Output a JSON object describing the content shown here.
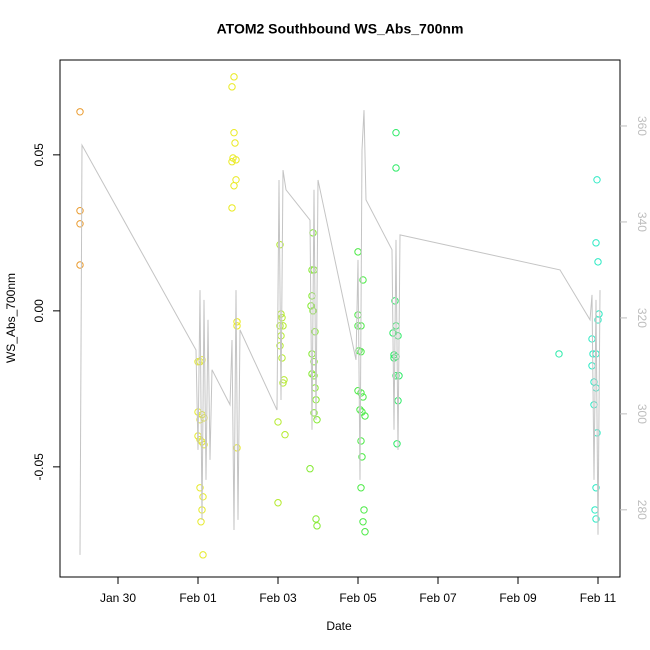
{
  "chart_data": {
    "type": "scatter",
    "title": "ATOM2 Southbound WS_Abs_700nm",
    "xlabel": "Date",
    "ylabel": "WS_Abs_700nm",
    "xlim": [
      28.55,
      42.55
    ],
    "ylim": [
      -0.0853,
      0.0804
    ],
    "y2lim": [
      266.0,
      373.75
    ],
    "xticks": [
      {
        "value": 30,
        "label": "Jan 30"
      },
      {
        "value": 32,
        "label": "Feb 01"
      },
      {
        "value": 34,
        "label": "Feb 03"
      },
      {
        "value": 36,
        "label": "Feb 05"
      },
      {
        "value": 38,
        "label": "Feb 07"
      },
      {
        "value": 40,
        "label": "Feb 09"
      },
      {
        "value": 42,
        "label": "Feb 11"
      }
    ],
    "yticks": [
      {
        "value": -0.05,
        "label": "-0.05"
      },
      {
        "value": 0,
        "label": "0.00"
      },
      {
        "value": 0.05,
        "label": "0.05"
      }
    ],
    "y2ticks": [
      280,
      300,
      320,
      340,
      360
    ],
    "series": [
      {
        "color": "#ea9a2c",
        "x": [
          29.05,
          29.05,
          29.05,
          29.05
        ],
        "values": [
          0.0638,
          0.0321,
          0.0279,
          0.0147
        ]
      },
      {
        "color": "#e6ea2c",
        "x": [
          32,
          32.05,
          32.1,
          32,
          32.05,
          32.1,
          32.15,
          32,
          32.05,
          32.1,
          32.15,
          32.05,
          32.125,
          32.1,
          32.075,
          32.125
        ],
        "values": [
          -0.0163,
          -0.0163,
          -0.0157,
          -0.0324,
          -0.0349,
          -0.0333,
          -0.0343,
          -0.0401,
          -0.0413,
          -0.042,
          -0.0429,
          -0.0567,
          -0.0596,
          -0.0638,
          -0.0676,
          -0.0782
        ]
      },
      {
        "color": "#eaea22",
        "x": [
          32.9,
          32.85,
          32.9,
          32.925,
          32.875,
          32.95,
          32.85,
          32.95,
          32.9,
          32.85,
          32.975,
          32.975,
          32.975
        ],
        "values": [
          0.075,
          0.0718,
          0.0571,
          0.0538,
          0.049,
          0.0484,
          0.0478,
          0.042,
          0.0401,
          0.033,
          -0.0035,
          -0.0048,
          -0.0439
        ]
      },
      {
        "color": "#b4ea2c",
        "x": [
          34.05,
          34.075,
          34.1,
          34.05,
          34.125,
          34.075,
          34.05,
          34.1,
          34.15,
          34.125,
          34,
          34.175,
          34
        ],
        "values": [
          0.0212,
          -0.001,
          -0.0022,
          -0.0048,
          -0.0048,
          -0.008,
          -0.0112,
          -0.0151,
          -0.0221,
          -0.0231,
          -0.0356,
          -0.0397,
          -0.0615
        ]
      },
      {
        "color": "#84ea30",
        "x": [
          34.875,
          34.85,
          34.9,
          34.85,
          34.825,
          34.875,
          34.925,
          34.85,
          34.9,
          34.85,
          34.9,
          34.925,
          34.95,
          34.9,
          34.975,
          34.8,
          34.95,
          34.975
        ],
        "values": [
          0.025,
          0.0131,
          0.0131,
          0.0048,
          0.0016,
          0,
          -0.0067,
          -0.0138,
          -0.0163,
          -0.0202,
          -0.0208,
          -0.0247,
          -0.0285,
          -0.0327,
          -0.0349,
          -0.0506,
          -0.0667,
          -0.0689
        ]
      },
      {
        "color": "#4cea46",
        "x": [
          36,
          36.125,
          36,
          36.075,
          36,
          36.025,
          36.075,
          36,
          36.075,
          36.125,
          36.05,
          36.1,
          36.175,
          36.075,
          36.1,
          36.075,
          36.15,
          36.125,
          36.175
        ],
        "values": [
          0.0189,
          0.0099,
          -0.0013,
          -0.0048,
          -0.0048,
          -0.0128,
          -0.0131,
          -0.0256,
          -0.0263,
          -0.0276,
          -0.0317,
          -0.0324,
          -0.0337,
          -0.0417,
          -0.0468,
          -0.0567,
          -0.0638,
          -0.0676,
          -0.0708
        ]
      },
      {
        "color": "#2cea66",
        "x": [
          36.95,
          36.95,
          36.925,
          36.95,
          36.875,
          37,
          36.9,
          36.95,
          36.9,
          36.95,
          37.025,
          37,
          36.975
        ],
        "values": [
          0.0571,
          0.0458,
          0.0032,
          -0.0048,
          -0.0071,
          -0.008,
          -0.0141,
          -0.0147,
          -0.0151,
          -0.0208,
          -0.0208,
          -0.0288,
          -0.0426
        ]
      },
      {
        "color": "#2ceaaa",
        "x": [
          41.025
        ],
        "values": [
          -0.0138
        ]
      },
      {
        "color": "#2ceac4",
        "x": [
          41.975,
          41.95,
          42,
          42.025,
          42,
          41.85,
          41.875,
          41.95,
          41.85,
          41.9,
          41.95,
          41.9,
          41.975,
          41.95,
          41.925,
          41.95
        ],
        "values": [
          0.042,
          0.0218,
          0.0157,
          -0.001,
          -0.0029,
          -0.009,
          -0.0138,
          -0.0138,
          -0.0176,
          -0.0228,
          -0.0247,
          -0.0301,
          -0.0391,
          -0.0567,
          -0.0638,
          -0.0667
        ]
      },
      {
        "type": "line",
        "axis": "y2",
        "color": "#c4c4c4",
        "x": [
          29.05,
          29.1,
          31.95,
          32,
          32.05,
          32.1,
          32.15,
          32.2,
          32.25,
          32.3,
          32.35,
          32.8,
          32.85,
          32.9,
          32.95,
          33,
          33.05,
          33.975,
          34.025,
          34.075,
          34.125,
          34.2,
          34.8,
          34.85,
          34.9,
          34.95,
          35,
          35.95,
          36,
          36.05,
          36.1,
          36.15,
          36.2,
          36.85,
          36.9,
          36.95,
          37,
          37.05,
          41.05,
          41.8,
          41.85,
          41.9,
          41.95,
          42,
          42.05
        ],
        "values": [
          270.6,
          356.0,
          313.3,
          292.5,
          325.8,
          277.9,
          323.75,
          286.25,
          319.6,
          290.4,
          309.2,
          301.9,
          315.4,
          275.8,
          325.8,
          277.9,
          317.5,
          300.8,
          348.75,
          302.9,
          350.8,
          346.7,
          340.4,
          296.7,
          346.7,
          298.75,
          348.75,
          311.25,
          332.1,
          286.25,
          355.0,
          363.3,
          344.6,
          334.2,
          296.7,
          336.25,
          292.5,
          337.3,
          330.0,
          319.6,
          324.8,
          286.25,
          323.75,
          274.8,
          325.8
        ]
      }
    ]
  }
}
